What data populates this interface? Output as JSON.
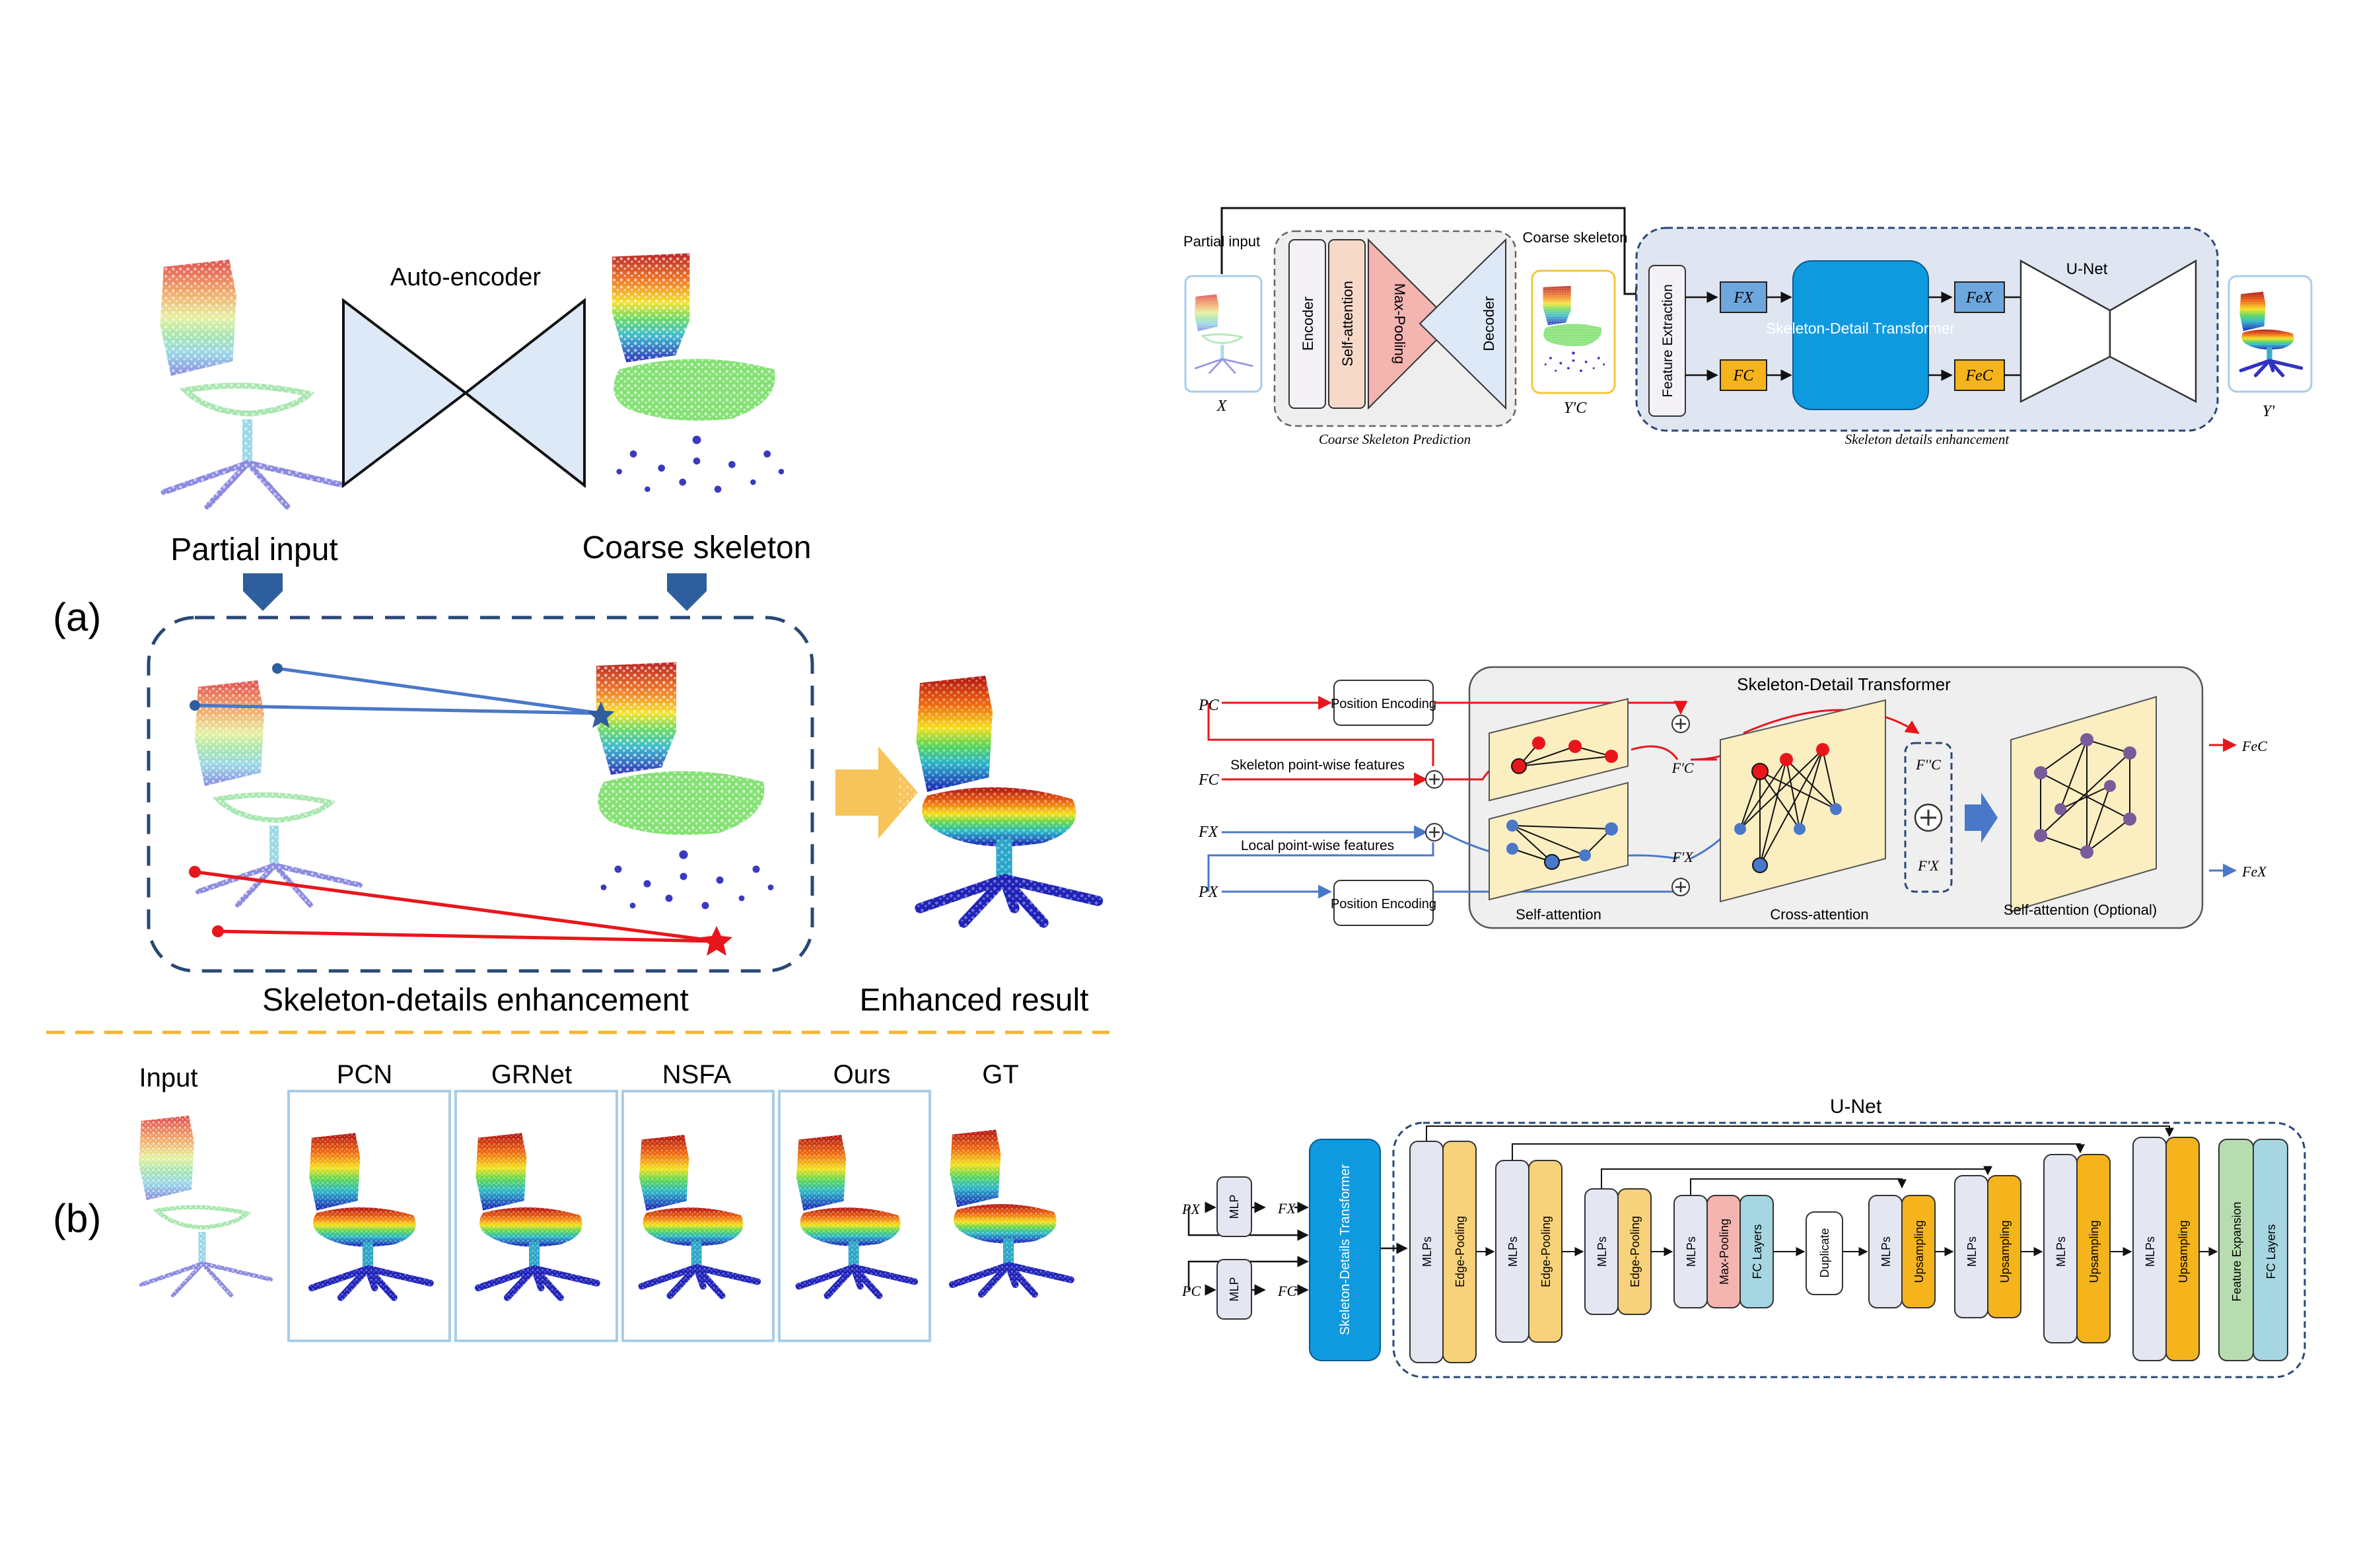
{
  "left": {
    "autoencoder_label": "Auto-encoder",
    "partial_input_label": "Partial input",
    "coarse_skeleton_label": "Coarse skeleton",
    "panel_a_label": "(a)",
    "panel_b_label": "(b)",
    "enhancement_label": "Skeleton-details enhancement",
    "enhanced_result_label": "Enhanced result",
    "comparison": [
      "Input",
      "PCN",
      "GRNet",
      "NSFA",
      "Ours",
      "GT"
    ]
  },
  "pipeline": {
    "partial_input": "Partial input",
    "x_label": "X",
    "encoder": "Encoder",
    "self_attention": "Self-attention",
    "max_pooling": "Max-Pooling",
    "decoder": "Decoder",
    "coarse_prediction_caption": "Coarse Skeleton Prediction",
    "coarse_skeleton": "Coarse skeleton",
    "yc_label": "Y'C",
    "feature_extraction": "Feature Extraction",
    "fx": "FX",
    "fc": "FC",
    "sdt": "Skeleton-Detail Transformer",
    "fxe": "FeX",
    "fce": "FeC",
    "unet": "U-Net",
    "y_prime": "Y'",
    "enhancement_caption": "Skeleton details enhancement"
  },
  "transformer": {
    "title": "Skeleton-Detail Transformer",
    "pc": "PC",
    "fc": "FC",
    "fx": "FX",
    "px": "PX",
    "pos_enc_top": "Position Encoding",
    "pos_enc_bottom": "Position Encoding",
    "skeleton_features": "Skeleton point-wise features",
    "local_features": "Local point-wise features",
    "fc_prime": "F'C",
    "fx_prime": "F'X",
    "fc_dprime": "F''C",
    "fx_prime2": "F'X",
    "self_attention": "Self-attention",
    "cross_attention": "Cross-attention",
    "self_attention_optional": "Self-attention (Optional)",
    "fce_out": "FeC",
    "fxe_out": "FeX"
  },
  "unet": {
    "title": "U-Net",
    "px": "PX",
    "pc": "PC",
    "mlp": "MLP",
    "fx": "FX",
    "fc": "FC",
    "sdt": "Skeleton-Details Transformer",
    "mlps": "MLPs",
    "edge_pooling": "Edge-Pooling",
    "max_pooling": "Max-Pooling",
    "fc_layers": "FC Layers",
    "duplicate": "Duplicate",
    "upsampling": "Upsampling",
    "feature_expansion": "Feature Expansion"
  },
  "colors": {
    "accent_blue": "#2e5e9e",
    "dashed_blue": "#2a4876",
    "sdt_blue": "#0f9ae0",
    "orange_block": "#f5b41c",
    "peach_block": "#f7d27a",
    "mlp_gray": "#e4e6f2",
    "red": "#e8161b",
    "line_blue": "#4a78c8",
    "pale_yellow": "#fbeec1",
    "divider_yellow": "#f2b632"
  }
}
